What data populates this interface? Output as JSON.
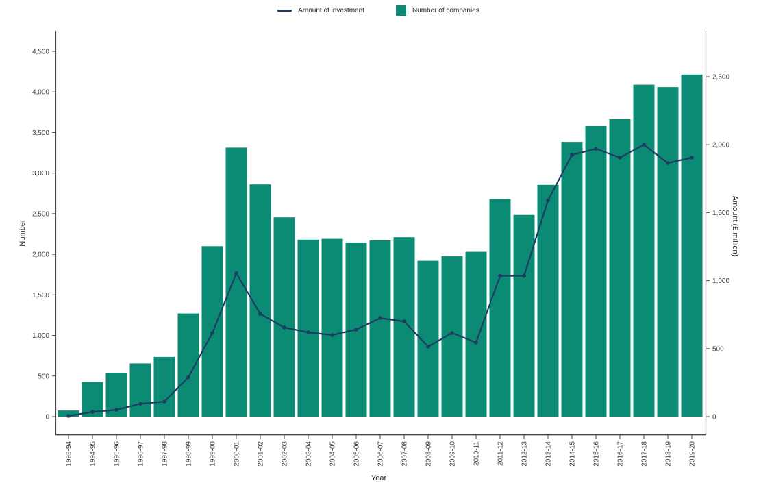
{
  "legend": {
    "amount_label": "Amount of investment",
    "companies_label": "Number of companies"
  },
  "colors": {
    "bar": "#0b8a74",
    "line": "#1d3c64",
    "axis": "#4a4a4a",
    "tick_text": "#3d3d3d"
  },
  "chart_data": {
    "type": "bar",
    "subtype": "combo-bar-line-dual-axis",
    "title": "",
    "xlabel": "Year",
    "ylabel_left": "Number",
    "ylabel_right": "Amount (£ million)",
    "ylim_left": [
      0,
      4500
    ],
    "ylim_right": [
      0,
      2500
    ],
    "grid": false,
    "legend_position": "top",
    "categories": [
      "1993-94",
      "1994-95",
      "1995-96",
      "1996-97",
      "1997-98",
      "1998-99",
      "1999-00",
      "2000-01",
      "2001-02",
      "2002-03",
      "2003-04",
      "2004-05",
      "2005-06",
      "2006-07",
      "2007-08",
      "2008-09",
      "2009-10",
      "2010-11",
      "2011-12",
      "2012-13",
      "2013-14",
      "2014-15",
      "2015-16",
      "2016-17",
      "2017-18",
      "2018-19",
      "2019-20"
    ],
    "series": [
      {
        "name": "Number of companies",
        "type": "bar",
        "axis": "left",
        "values": [
          75,
          425,
          540,
          655,
          735,
          1270,
          2100,
          3315,
          2860,
          2455,
          2180,
          2190,
          2145,
          2170,
          2210,
          1920,
          1975,
          2030,
          2680,
          2485,
          2855,
          3385,
          3580,
          3665,
          4090,
          4060,
          4215
        ]
      },
      {
        "name": "Amount of investment",
        "type": "line",
        "axis": "right",
        "values": [
          5,
          35,
          50,
          95,
          110,
          290,
          615,
          1055,
          755,
          655,
          620,
          600,
          640,
          725,
          700,
          515,
          615,
          545,
          1035,
          1035,
          1590,
          1925,
          1970,
          1905,
          2000,
          1865,
          1905
        ]
      }
    ],
    "left_tick_labels": [
      "0",
      "500",
      "1,000",
      "1,500",
      "2,000",
      "2,500",
      "3,000",
      "3,500",
      "4,000",
      "4,500"
    ],
    "left_tick_values": [
      0,
      500,
      1000,
      1500,
      2000,
      2500,
      3000,
      3500,
      4000,
      4500
    ],
    "right_tick_labels": [
      "0",
      "500",
      "1,000",
      "1,500",
      "2,000",
      "2,500"
    ],
    "right_tick_values": [
      0,
      500,
      1000,
      1500,
      2000,
      2500
    ]
  }
}
